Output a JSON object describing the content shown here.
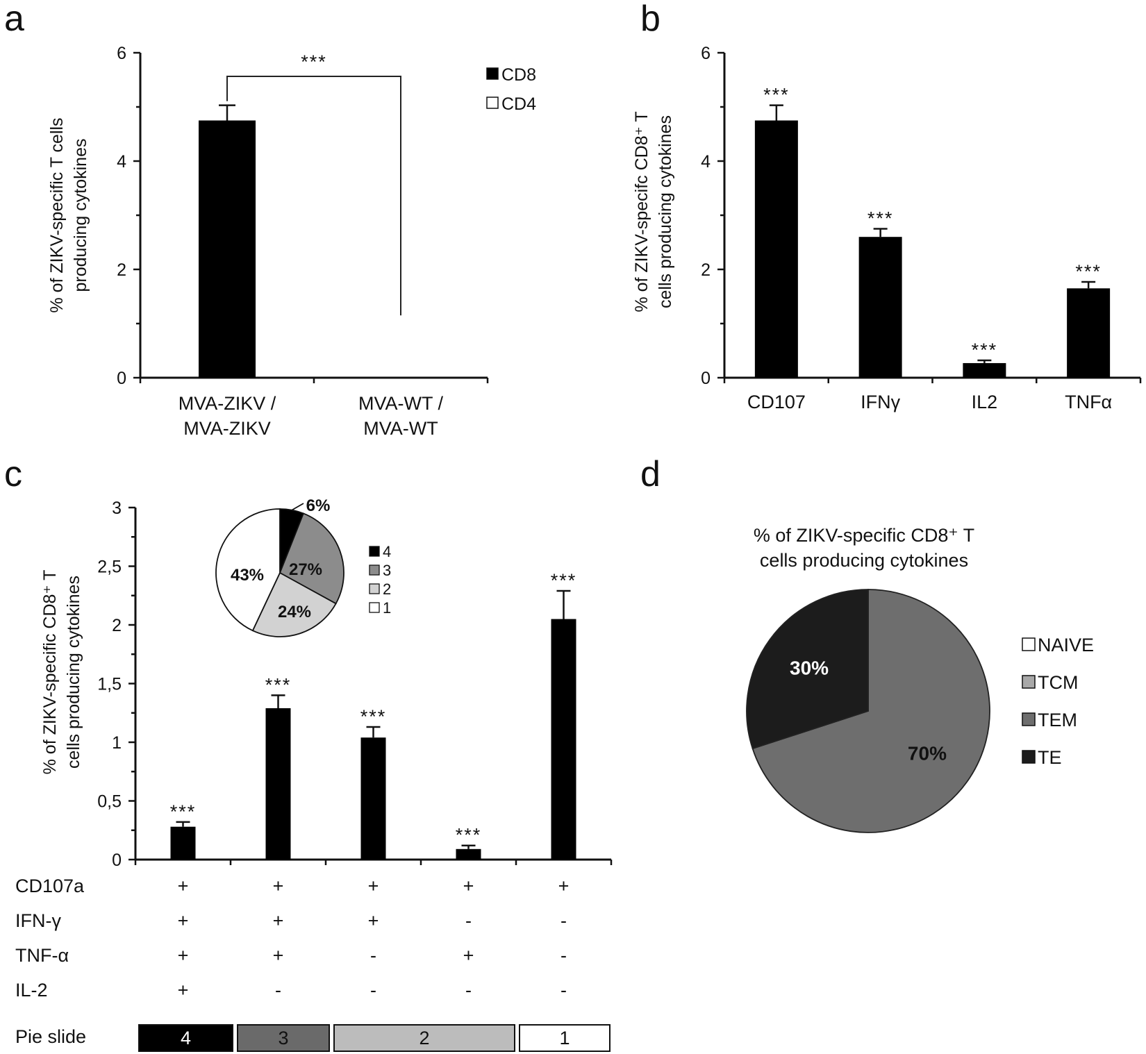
{
  "panels": {
    "a": "a",
    "b": "b",
    "c": "c",
    "d": "d"
  },
  "chart_data": [
    {
      "panel": "a",
      "type": "bar",
      "ylabel_lines": [
        "% of ZIKV-specific T cells",
        "producing cytokines"
      ],
      "ylim": [
        0,
        6
      ],
      "yticks": [
        "0",
        "2",
        "4",
        "6"
      ],
      "categories": [
        [
          "MVA-ZIKV /",
          "MVA-ZIKV"
        ],
        [
          "MVA-WT /",
          "MVA-WT"
        ]
      ],
      "series": [
        {
          "name": "CD8",
          "color": "#000000",
          "values": [
            4.75,
            0
          ],
          "errors": [
            0.28,
            0
          ]
        },
        {
          "name": "CD4",
          "color": "#ffffff",
          "values": [
            0,
            0
          ],
          "errors": [
            0,
            0
          ]
        }
      ],
      "significance": "***",
      "legend_position": "top-right",
      "grid": false
    },
    {
      "panel": "b",
      "type": "bar",
      "ylabel_lines": [
        "% of ZIKV-specifc CD8⁺ T",
        "cells producing cytokines"
      ],
      "ylim": [
        0,
        6
      ],
      "yticks": [
        "0",
        "2",
        "4",
        "6"
      ],
      "categories": [
        "CD107",
        "IFNγ",
        "IL2",
        "TNFα"
      ],
      "values": [
        4.75,
        2.6,
        0.27,
        1.65
      ],
      "errors": [
        0.28,
        0.15,
        0.05,
        0.12
      ],
      "annotations": [
        "***",
        "***",
        "***",
        "***"
      ],
      "color": "#000000",
      "grid": false
    },
    {
      "panel": "c",
      "type": "bar",
      "ylabel_lines": [
        "% of ZIKV-specific CD8⁺ T",
        "cells producing cytokines"
      ],
      "ylim": [
        0,
        3
      ],
      "yticks": [
        "0",
        "0,5",
        "1",
        "1,5",
        "2",
        "2,5",
        "3"
      ],
      "values": [
        0.28,
        1.29,
        1.04,
        0.09,
        2.05
      ],
      "errors": [
        0.04,
        0.11,
        0.09,
        0.03,
        0.24
      ],
      "annotations": [
        "***",
        "***",
        "***",
        "***",
        "***"
      ],
      "color": "#000000",
      "table": {
        "rows": [
          {
            "label": "CD107a",
            "marks": [
              "+",
              "+",
              "+",
              "+",
              "+"
            ]
          },
          {
            "label": "IFN-γ",
            "marks": [
              "+",
              "+",
              "+",
              "-",
              "-"
            ]
          },
          {
            "label": "TNF-α",
            "marks": [
              "+",
              "+",
              "-",
              "+",
              "-"
            ]
          },
          {
            "label": "IL-2",
            "marks": [
              "+",
              "-",
              "-",
              "-",
              "-"
            ]
          }
        ],
        "pie_slide_label": "Pie slide",
        "pie_slide_boxes": [
          {
            "label": "4",
            "color": "#000000",
            "span": [
              0,
              0
            ]
          },
          {
            "label": "3",
            "color": "#6a6a6a",
            "span": [
              1,
              1
            ]
          },
          {
            "label": "2",
            "color": "#bcbcbc",
            "span": [
              2,
              3
            ]
          },
          {
            "label": "1",
            "color": "#ffffff",
            "span": [
              4,
              4
            ]
          }
        ]
      },
      "inset_pie": {
        "type": "pie",
        "slices": [
          {
            "label": "4",
            "value": 6,
            "text": "6%",
            "color": "#000000"
          },
          {
            "label": "3",
            "value": 27,
            "text": "27%",
            "color": "#8c8c8c"
          },
          {
            "label": "2",
            "value": 24,
            "text": "24%",
            "color": "#d2d2d2"
          },
          {
            "label": "1",
            "value": 43,
            "text": "43%",
            "color": "#ffffff"
          }
        ],
        "legend": [
          "4",
          "3",
          "2",
          "1"
        ]
      },
      "grid": false
    },
    {
      "panel": "d",
      "type": "pie",
      "title_lines": [
        "% of ZIKV-specific CD8⁺ T",
        "cells producing cytokines"
      ],
      "slices": [
        {
          "label": "NAIVE",
          "value": 0,
          "text": "",
          "color": "#ffffff"
        },
        {
          "label": "TCM",
          "value": 0,
          "text": "",
          "color": "#a8a8a8"
        },
        {
          "label": "TEM",
          "value": 70,
          "text": "70%",
          "color": "#6e6e6e"
        },
        {
          "label": "TE",
          "value": 30,
          "text": "30%",
          "color": "#1c1c1c"
        }
      ],
      "legend": [
        "NAIVE",
        "TCM",
        "TEM",
        "TE"
      ],
      "legend_position": "right"
    }
  ]
}
